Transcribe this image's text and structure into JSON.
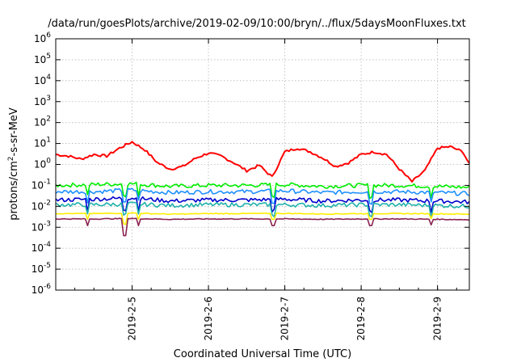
{
  "chart_data": {
    "type": "line",
    "title": "/data/run/goesPlots/archive/2019-02-09/10:00/bryn/../flux/5daysMoonFluxes.txt",
    "xlabel": "Coordinated Universal Time (UTC)",
    "ylabel": "protons/cm2-s-sr-MeV",
    "ylabel_parts": {
      "pre": "protons/cm",
      "sup": "2",
      "post": "-s-sr-MeV"
    },
    "xlim": [
      "2019-02-04",
      "2019-02-09T10:00"
    ],
    "x_tick_labels": [
      "2019-2-5",
      "2019-2-6",
      "2019-2-7",
      "2019-2-8",
      "2019-2-9"
    ],
    "x_ticks": [
      "2019-02-05",
      "2019-02-06",
      "2019-02-07",
      "2019-02-08",
      "2019-02-09"
    ],
    "y_scale": "log",
    "ylim": [
      1e-06,
      1000000
    ],
    "y_tick_labels": [
      {
        "base": "10",
        "exp": "6"
      },
      {
        "base": "10",
        "exp": "5"
      },
      {
        "base": "10",
        "exp": "4"
      },
      {
        "base": "10",
        "exp": "3"
      },
      {
        "base": "10",
        "exp": "2"
      },
      {
        "base": "10",
        "exp": "1"
      },
      {
        "base": "10",
        "exp": "0"
      },
      {
        "base": "10",
        "exp": "-1"
      },
      {
        "base": "10",
        "exp": "-2"
      },
      {
        "base": "10",
        "exp": "-3"
      },
      {
        "base": "10",
        "exp": "-4"
      },
      {
        "base": "10",
        "exp": "-5"
      },
      {
        "base": "10",
        "exp": "-6"
      }
    ],
    "grid": true,
    "series": [
      {
        "color": "#ff0000",
        "x": [
          "2019-02-04T00:00",
          "2019-02-04T04:00",
          "2019-02-04T08:00",
          "2019-02-04T12:00",
          "2019-02-04T16:00",
          "2019-02-04T20:00",
          "2019-02-05T00:00",
          "2019-02-05T04:00",
          "2019-02-05T08:00",
          "2019-02-05T12:00",
          "2019-02-05T16:00",
          "2019-02-05T20:00",
          "2019-02-06T00:00",
          "2019-02-06T04:00",
          "2019-02-06T08:00",
          "2019-02-06T12:00",
          "2019-02-06T16:00",
          "2019-02-06T20:00",
          "2019-02-07T00:00",
          "2019-02-07T04:00",
          "2019-02-07T08:00",
          "2019-02-07T12:00",
          "2019-02-07T16:00",
          "2019-02-07T20:00",
          "2019-02-08T00:00",
          "2019-02-08T04:00",
          "2019-02-08T08:00",
          "2019-02-08T12:00",
          "2019-02-08T16:00",
          "2019-02-08T20:00",
          "2019-02-09T00:00",
          "2019-02-09T04:00",
          "2019-02-09T08:00",
          "2019-02-09T10:00"
        ],
        "values": [
          3,
          2.5,
          1.8,
          3,
          2.5,
          6,
          12,
          5,
          1.2,
          0.6,
          0.8,
          2,
          3.5,
          2.5,
          1.2,
          0.5,
          0.9,
          0.25,
          4,
          6,
          4,
          2,
          0.8,
          1.2,
          3,
          4,
          3,
          0.6,
          0.15,
          0.5,
          6,
          7,
          4,
          1
        ]
      },
      {
        "color": "#00ee00",
        "x": [
          "2019-02-04T00:00",
          "2019-02-04T12:00",
          "2019-02-05T00:00",
          "2019-02-05T12:00",
          "2019-02-06T00:00",
          "2019-02-06T12:00",
          "2019-02-07T00:00",
          "2019-02-07T12:00",
          "2019-02-08T00:00",
          "2019-02-08T12:00",
          "2019-02-09T00:00",
          "2019-02-09T10:00"
        ],
        "values": [
          0.1,
          0.11,
          0.12,
          0.09,
          0.1,
          0.1,
          0.11,
          0.09,
          0.1,
          0.1,
          0.09,
          0.08
        ]
      },
      {
        "color": "#1e90ff",
        "x": [
          "2019-02-04T00:00",
          "2019-02-04T12:00",
          "2019-02-05T00:00",
          "2019-02-05T12:00",
          "2019-02-06T00:00",
          "2019-02-06T12:00",
          "2019-02-07T00:00",
          "2019-02-07T12:00",
          "2019-02-08T00:00",
          "2019-02-08T12:00",
          "2019-02-09T00:00",
          "2019-02-09T10:00"
        ],
        "values": [
          0.05,
          0.05,
          0.06,
          0.045,
          0.05,
          0.05,
          0.055,
          0.045,
          0.05,
          0.05,
          0.045,
          0.04
        ]
      },
      {
        "color": "#0000cd",
        "x": [
          "2019-02-04T00:00",
          "2019-02-04T12:00",
          "2019-02-05T00:00",
          "2019-02-05T12:00",
          "2019-02-06T00:00",
          "2019-02-06T12:00",
          "2019-02-07T00:00",
          "2019-02-07T12:00",
          "2019-02-08T00:00",
          "2019-02-08T12:00",
          "2019-02-09T00:00",
          "2019-02-09T10:00"
        ],
        "values": [
          0.02,
          0.022,
          0.025,
          0.018,
          0.02,
          0.02,
          0.022,
          0.018,
          0.02,
          0.02,
          0.018,
          0.016
        ]
      },
      {
        "color": "#20b2aa",
        "x": [
          "2019-02-04T00:00",
          "2019-02-04T12:00",
          "2019-02-05T00:00",
          "2019-02-05T12:00",
          "2019-02-06T00:00",
          "2019-02-06T12:00",
          "2019-02-07T00:00",
          "2019-02-07T12:00",
          "2019-02-08T00:00",
          "2019-02-08T12:00",
          "2019-02-09T00:00",
          "2019-02-09T10:00"
        ],
        "values": [
          0.012,
          0.012,
          0.013,
          0.011,
          0.012,
          0.012,
          0.012,
          0.011,
          0.012,
          0.012,
          0.011,
          0.01
        ]
      },
      {
        "color": "#ffee00",
        "x": [
          "2019-02-04T00:00",
          "2019-02-04T12:00",
          "2019-02-05T00:00",
          "2019-02-05T12:00",
          "2019-02-06T00:00",
          "2019-02-06T12:00",
          "2019-02-07T00:00",
          "2019-02-07T12:00",
          "2019-02-08T00:00",
          "2019-02-08T12:00",
          "2019-02-09T00:00",
          "2019-02-09T10:00"
        ],
        "values": [
          0.0045,
          0.0045,
          0.0048,
          0.0042,
          0.0045,
          0.0045,
          0.0046,
          0.0043,
          0.0045,
          0.0045,
          0.0044,
          0.0042
        ]
      },
      {
        "color": "#8b2252",
        "x": [
          "2019-02-04T00:00",
          "2019-02-04T12:00",
          "2019-02-05T00:00",
          "2019-02-05T12:00",
          "2019-02-06T00:00",
          "2019-02-06T12:00",
          "2019-02-07T00:00",
          "2019-02-07T12:00",
          "2019-02-08T00:00",
          "2019-02-08T12:00",
          "2019-02-09T00:00",
          "2019-02-09T10:00"
        ],
        "values": [
          0.0025,
          0.0025,
          0.0026,
          0.0024,
          0.0025,
          0.0025,
          0.0025,
          0.0024,
          0.0025,
          0.0025,
          0.0024,
          0.0023
        ]
      }
    ],
    "dips": [
      {
        "x": "2019-02-04T10:00",
        "value": 0.0012
      },
      {
        "x": "2019-02-04T21:30",
        "value": 0.0004
      },
      {
        "x": "2019-02-05T02:00",
        "value": 0.0012
      },
      {
        "x": "2019-02-06T20:30",
        "value": 0.0012
      },
      {
        "x": "2019-02-08T03:00",
        "value": 0.0012
      },
      {
        "x": "2019-02-08T22:00",
        "value": 0.0013
      }
    ]
  }
}
